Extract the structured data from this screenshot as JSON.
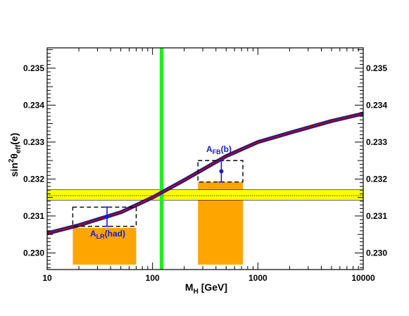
{
  "chart_data": {
    "type": "line",
    "xlabel": {
      "main": "M",
      "sub": "H",
      "rest": " [GeV]"
    },
    "ylabel": {
      "pre": "sin",
      "sup": "2",
      "theta": "θ",
      "sub": "eff",
      "rest": "(e)"
    },
    "x_scale": "log",
    "xlim": [
      10,
      10000
    ],
    "ylim": [
      0.22955,
      0.23555
    ],
    "x_ticks": [
      {
        "value": 10,
        "label": "10"
      },
      {
        "value": 100,
        "label": "100"
      },
      {
        "value": 1000,
        "label": "1000"
      },
      {
        "value": 10000,
        "label": "10000"
      }
    ],
    "y_ticks": [
      {
        "value": 0.23,
        "label": "0.230"
      },
      {
        "value": 0.231,
        "label": "0.231"
      },
      {
        "value": 0.232,
        "label": "0.232"
      },
      {
        "value": 0.233,
        "label": "0.233"
      },
      {
        "value": 0.234,
        "label": "0.234"
      },
      {
        "value": 0.235,
        "label": "0.235"
      }
    ],
    "sm_curve": {
      "x": [
        10,
        20,
        50,
        100,
        200,
        500,
        1000,
        2000,
        5000,
        10000
      ],
      "y": [
        0.23053,
        0.23075,
        0.2311,
        0.2315,
        0.23197,
        0.23262,
        0.233,
        0.23325,
        0.23357,
        0.23377
      ],
      "color": "#cc0000",
      "band_color": "#2a1a80"
    },
    "world_average_band": {
      "y_low": 0.23143,
      "y_high": 0.23171,
      "y_central": 0.23155,
      "color": "#ffff00"
    },
    "higgs_mass_band": {
      "x_low": 117,
      "x_high": 127,
      "color": "#22ee22"
    },
    "measurements": [
      {
        "label_main": "A",
        "label_sub": "LR",
        "label_rest": "(had)",
        "x": 37,
        "y": 0.23098,
        "y_err": 0.00026,
        "box_x": [
          17.5,
          70
        ],
        "box_y": [
          0.23072,
          0.23124
        ],
        "mh_range": [
          17.5,
          70
        ],
        "fill_top": 0.23068,
        "color": "#1a1acc",
        "fill_color": "#ffa500"
      },
      {
        "label_main": "A",
        "label_sub": "FB",
        "label_rest": "(b)",
        "x": 450,
        "y": 0.23221,
        "y_err": 0.00029,
        "box_x": [
          270,
          720
        ],
        "box_y": [
          0.23192,
          0.2325
        ],
        "mh_range": [
          270,
          720
        ],
        "fill_top": 0.23192,
        "color": "#1a1acc",
        "fill_color": "#ffa500"
      }
    ]
  }
}
